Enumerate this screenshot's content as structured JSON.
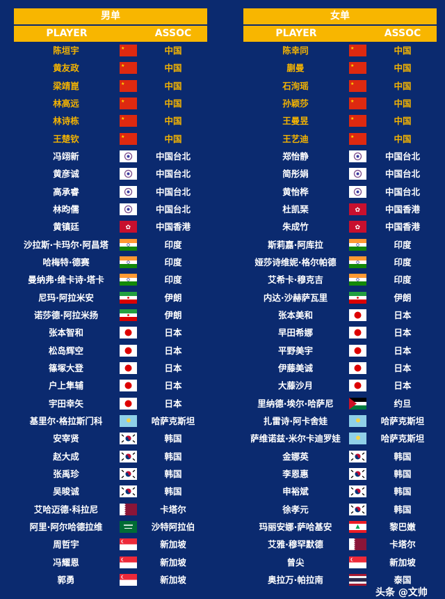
{
  "colors": {
    "background": "#0b2a6f",
    "header": "#f8b600",
    "highlight": "#f5b400"
  },
  "men": {
    "title": "男单",
    "player_header": "PLAYER",
    "assoc_header": "ASSOC",
    "rows": [
      {
        "name": "陈垣宇",
        "flag": "cn",
        "assoc": "中国"
      },
      {
        "name": "黄友政",
        "flag": "cn",
        "assoc": "中国"
      },
      {
        "name": "梁靖崑",
        "flag": "cn",
        "assoc": "中国"
      },
      {
        "name": "林高远",
        "flag": "cn",
        "assoc": "中国"
      },
      {
        "name": "林诗栋",
        "flag": "cn",
        "assoc": "中国"
      },
      {
        "name": "王楚钦",
        "flag": "cn",
        "assoc": "中国"
      },
      {
        "name": "冯翊新",
        "flag": "tw",
        "assoc": "中国台北"
      },
      {
        "name": "黄彦诚",
        "flag": "tw",
        "assoc": "中国台北"
      },
      {
        "name": "高承睿",
        "flag": "tw",
        "assoc": "中国台北"
      },
      {
        "name": "林昀儒",
        "flag": "tw",
        "assoc": "中国台北"
      },
      {
        "name": "黄镇廷",
        "flag": "hk",
        "assoc": "中国香港"
      },
      {
        "name": "沙拉斯·卡玛尔·阿昌塔",
        "flag": "in",
        "assoc": "印度"
      },
      {
        "name": "哈梅特·德赛",
        "flag": "in",
        "assoc": "印度"
      },
      {
        "name": "曼纳弗·维卡诗·塔卡",
        "flag": "in",
        "assoc": "印度"
      },
      {
        "name": "尼玛·阿拉米安",
        "flag": "ir",
        "assoc": "伊朗"
      },
      {
        "name": "诺莎德·阿拉米扬",
        "flag": "ir",
        "assoc": "伊朗"
      },
      {
        "name": "张本智和",
        "flag": "jp",
        "assoc": "日本"
      },
      {
        "name": "松岛辉空",
        "flag": "jp",
        "assoc": "日本"
      },
      {
        "name": "篠塚大登",
        "flag": "jp",
        "assoc": "日本"
      },
      {
        "name": "户上隼辅",
        "flag": "jp",
        "assoc": "日本"
      },
      {
        "name": "宇田幸矢",
        "flag": "jp",
        "assoc": "日本"
      },
      {
        "name": "基里尔·格拉斯门科",
        "flag": "kz",
        "assoc": "哈萨克斯坦"
      },
      {
        "name": "安宰贤",
        "flag": "kr",
        "assoc": "韩国"
      },
      {
        "name": "赵大成",
        "flag": "kr",
        "assoc": "韩国"
      },
      {
        "name": "张禹珍",
        "flag": "kr",
        "assoc": "韩国"
      },
      {
        "name": "吴晙诚",
        "flag": "kr",
        "assoc": "韩国"
      },
      {
        "name": "艾哈迈德·科拉尼",
        "flag": "qa",
        "assoc": "卡塔尔"
      },
      {
        "name": "阿里·阿尔哈德拉维",
        "flag": "sa",
        "assoc": "沙特阿拉伯"
      },
      {
        "name": "周哲宇",
        "flag": "sg",
        "assoc": "新加坡"
      },
      {
        "name": "冯耀恩",
        "flag": "sg",
        "assoc": "新加坡"
      },
      {
        "name": "郭勇",
        "flag": "sg",
        "assoc": "新加坡"
      }
    ]
  },
  "women": {
    "title": "女单",
    "player_header": "PLAYER",
    "assoc_header": "ASSOC",
    "rows": [
      {
        "name": "陈幸同",
        "flag": "cn",
        "assoc": "中国"
      },
      {
        "name": "蒯曼",
        "flag": "cn",
        "assoc": "中国"
      },
      {
        "name": "石洵瑶",
        "flag": "cn",
        "assoc": "中国"
      },
      {
        "name": "孙颖莎",
        "flag": "cn",
        "assoc": "中国"
      },
      {
        "name": "王曼昱",
        "flag": "cn",
        "assoc": "中国"
      },
      {
        "name": "王艺迪",
        "flag": "cn",
        "assoc": "中国"
      },
      {
        "name": "郑怡静",
        "flag": "tw",
        "assoc": "中国台北"
      },
      {
        "name": "简彤娟",
        "flag": "tw",
        "assoc": "中国台北"
      },
      {
        "name": "黄怡桦",
        "flag": "tw",
        "assoc": "中国台北"
      },
      {
        "name": "杜凯琹",
        "flag": "hk",
        "assoc": "中国香港"
      },
      {
        "name": "朱成竹",
        "flag": "hk",
        "assoc": "中国香港"
      },
      {
        "name": "斯莉嘉·阿库拉",
        "flag": "in",
        "assoc": "印度"
      },
      {
        "name": "娅莎诗维妮·格尔帕德",
        "flag": "in",
        "assoc": "印度"
      },
      {
        "name": "艾希卡·穆克吉",
        "flag": "in",
        "assoc": "印度"
      },
      {
        "name": "内达·沙赫萨瓦里",
        "flag": "ir",
        "assoc": "伊朗"
      },
      {
        "name": "张本美和",
        "flag": "jp",
        "assoc": "日本"
      },
      {
        "name": "早田希娜",
        "flag": "jp",
        "assoc": "日本"
      },
      {
        "name": "平野美宇",
        "flag": "jp",
        "assoc": "日本"
      },
      {
        "name": "伊藤美诚",
        "flag": "jp",
        "assoc": "日本"
      },
      {
        "name": "大藤沙月",
        "flag": "jp",
        "assoc": "日本"
      },
      {
        "name": "里纳德·埃尔·哈萨尼",
        "flag": "jo",
        "assoc": "约旦"
      },
      {
        "name": "扎雷诗·阿卡舍娃",
        "flag": "kz",
        "assoc": "哈萨克斯坦"
      },
      {
        "name": "萨维诺兹·米尔卡迪罗娃",
        "flag": "kz",
        "assoc": "哈萨克斯坦"
      },
      {
        "name": "金娜英",
        "flag": "kr",
        "assoc": "韩国"
      },
      {
        "name": "李恩惠",
        "flag": "kr",
        "assoc": "韩国"
      },
      {
        "name": "申裕斌",
        "flag": "kr",
        "assoc": "韩国"
      },
      {
        "name": "徐孝元",
        "flag": "kr",
        "assoc": "韩国"
      },
      {
        "name": "玛丽安娜·萨哈基安",
        "flag": "lb",
        "assoc": "黎巴嫩"
      },
      {
        "name": "艾雅·穆罕默德",
        "flag": "qa",
        "assoc": "卡塔尔"
      },
      {
        "name": "曾尖",
        "flag": "sg",
        "assoc": "新加坡"
      },
      {
        "name": "奥拉万·帕拉南",
        "flag": "th",
        "assoc": "泰国"
      }
    ]
  },
  "watermark": "头条 @文帅"
}
